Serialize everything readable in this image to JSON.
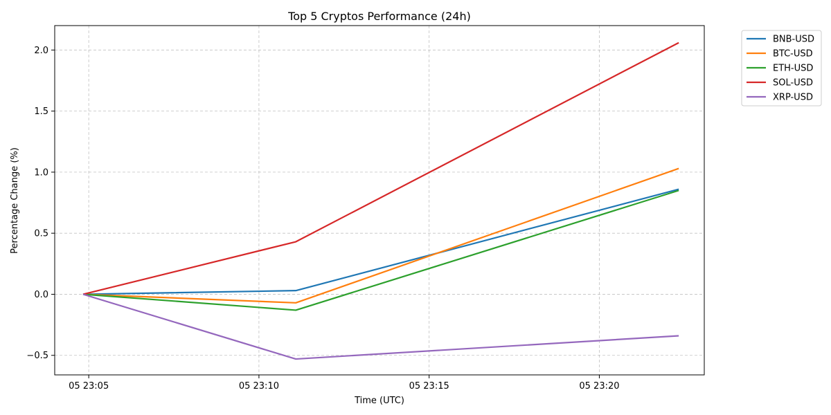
{
  "chart_data": {
    "type": "line",
    "title": "Top 5 Cryptos Performance (24h)",
    "xlabel": "Time (UTC)",
    "ylabel": "Percentage Change (%)",
    "x": [
      "05 23:04:50",
      "05 23:11:05",
      "05 23:22:20"
    ],
    "xlim": [
      "05 23:04:00",
      "05 23:23:05"
    ],
    "x_ticks": [
      {
        "value": "05 23:05:00",
        "label": "05 23:05"
      },
      {
        "value": "05 23:10:00",
        "label": "05 23:10"
      },
      {
        "value": "05 23:15:00",
        "label": "05 23:15"
      },
      {
        "value": "05 23:20:00",
        "label": "05 23:20"
      }
    ],
    "ylim": [
      -0.66,
      2.2
    ],
    "y_ticks": [
      {
        "value": -0.5,
        "label": "−0.5"
      },
      {
        "value": 0.0,
        "label": "0.0"
      },
      {
        "value": 0.5,
        "label": "0.5"
      },
      {
        "value": 1.0,
        "label": "1.0"
      },
      {
        "value": 1.5,
        "label": "1.5"
      },
      {
        "value": 2.0,
        "label": "2.0"
      }
    ],
    "grid": true,
    "legend_position": "outside-top-right",
    "series": [
      {
        "name": "BNB-USD",
        "color": "#1f77b4",
        "values": [
          0.0,
          0.03,
          0.86
        ]
      },
      {
        "name": "BTC-USD",
        "color": "#ff7f0e",
        "values": [
          0.0,
          -0.07,
          1.03
        ]
      },
      {
        "name": "ETH-USD",
        "color": "#2ca02c",
        "values": [
          0.0,
          -0.13,
          0.85
        ]
      },
      {
        "name": "SOL-USD",
        "color": "#d62728",
        "values": [
          0.0,
          0.43,
          2.06
        ]
      },
      {
        "name": "XRP-USD",
        "color": "#9467bd",
        "values": [
          0.0,
          -0.53,
          -0.34
        ]
      }
    ]
  }
}
